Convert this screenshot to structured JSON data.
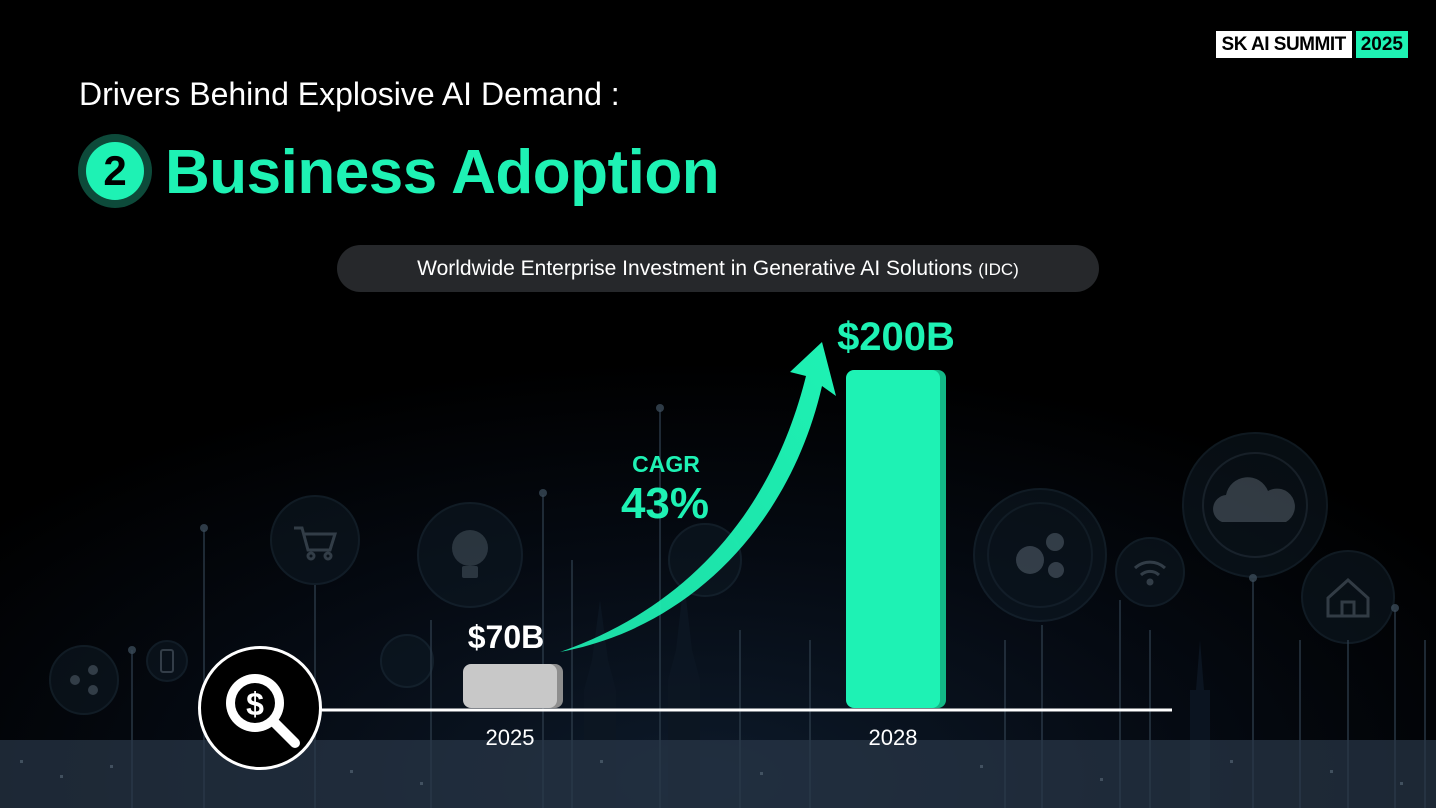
{
  "brand": {
    "name": "SK AI SUMMIT",
    "year": "2025"
  },
  "header": {
    "subtitle": "Drivers Behind Explosive AI Demand :",
    "number": "2",
    "title": "Business Adoption"
  },
  "chart_data": {
    "type": "bar",
    "title": "Worldwide Enterprise Investment in Generative AI Solutions",
    "source": "(IDC)",
    "categories": [
      "2025",
      "2028"
    ],
    "values": [
      70,
      200
    ],
    "value_labels": [
      "$70B",
      "$200B"
    ],
    "unit": "$B",
    "ylim": [
      0,
      200
    ],
    "bar_colors": [
      "#c8c8c8",
      "#1ef2b4"
    ],
    "annotation": {
      "label": "CAGR",
      "value": "43%"
    },
    "grid": false
  },
  "colors": {
    "accent": "#1ef2b4",
    "bar_2025": "#c8c8c8",
    "background": "#000000"
  },
  "icons": [
    "search-dollar-icon",
    "cart-icon",
    "bulb-icon",
    "gears-icon",
    "cloud-icon",
    "wifi-icon",
    "home-icon",
    "share-icon",
    "phone-icon",
    "chip-icon",
    "trend-arrow-icon"
  ]
}
